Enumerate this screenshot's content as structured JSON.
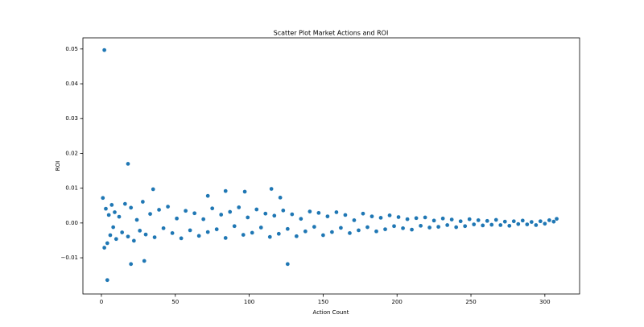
{
  "chart_data": {
    "type": "scatter",
    "title": "Scatter Plot Market Actions and ROI",
    "xlabel": "Action Count",
    "ylabel": "ROI",
    "color": "#1f77b4",
    "grid": false,
    "xlim": [
      -12.5,
      323.5
    ],
    "ylim": [
      -0.0204,
      0.0532
    ],
    "xticks": [
      0,
      50,
      100,
      150,
      200,
      250,
      300
    ],
    "yticks": [
      {
        "value": -0.01,
        "label": "−0.01"
      },
      {
        "value": 0,
        "label": "0.00"
      },
      0.01,
      0.02,
      0.03,
      0.04,
      0.05
    ],
    "x": [
      1,
      2,
      3,
      4,
      5,
      6,
      7,
      8,
      9,
      10,
      12,
      14,
      16,
      18,
      20,
      22,
      24,
      26,
      28,
      30,
      33,
      36,
      39,
      42,
      45,
      48,
      51,
      54,
      57,
      60,
      63,
      66,
      69,
      72,
      75,
      78,
      81,
      84,
      87,
      90,
      93,
      96,
      99,
      102,
      105,
      108,
      111,
      114,
      117,
      120,
      123,
      126,
      129,
      132,
      135,
      138,
      141,
      144,
      147,
      150,
      153,
      156,
      159,
      162,
      165,
      168,
      171,
      174,
      177,
      180,
      183,
      186,
      189,
      192,
      195,
      198,
      201,
      204,
      207,
      210,
      213,
      216,
      219,
      222,
      225,
      228,
      231,
      234,
      237,
      240,
      243,
      246,
      249,
      252,
      255,
      258,
      261,
      264,
      267,
      270,
      273,
      276,
      279,
      282,
      285,
      288,
      291,
      294,
      297,
      300,
      303,
      306,
      308,
      2,
      18,
      4,
      20,
      29,
      126,
      115,
      35,
      97,
      84,
      72,
      121
    ],
    "y": [
      0.0072,
      -0.0071,
      0.0041,
      -0.0058,
      0.0023,
      -0.0035,
      0.0052,
      -0.0012,
      0.0031,
      -0.0046,
      0.0018,
      -0.0027,
      0.0055,
      -0.0039,
      0.0044,
      -0.0051,
      0.0009,
      -0.0022,
      0.0061,
      -0.0033,
      0.0026,
      -0.0041,
      0.0038,
      -0.0015,
      0.0047,
      -0.0029,
      0.0013,
      -0.0044,
      0.0035,
      -0.0021,
      0.0028,
      -0.0037,
      0.0011,
      -0.0026,
      0.0042,
      -0.0018,
      0.0024,
      -0.0043,
      0.0032,
      -0.0009,
      0.0045,
      -0.0034,
      0.0016,
      -0.0028,
      0.0039,
      -0.0013,
      0.0027,
      -0.004,
      0.0021,
      -0.0031,
      0.0036,
      -0.0017,
      0.0025,
      -0.0038,
      0.0012,
      -0.0024,
      0.0033,
      -0.0011,
      0.0029,
      -0.0035,
      0.0019,
      -0.0026,
      0.0031,
      -0.0014,
      0.0023,
      -0.0029,
      0.0008,
      -0.0021,
      0.0027,
      -0.0012,
      0.0019,
      -0.0024,
      0.0015,
      -0.0018,
      0.0022,
      -0.0009,
      0.0017,
      -0.0015,
      0.0011,
      -0.0019,
      0.0014,
      -0.0008,
      0.0016,
      -0.0013,
      0.0007,
      -0.0011,
      0.0013,
      -0.0006,
      0.001,
      -0.0012,
      0.0005,
      -0.0009,
      0.0011,
      -0.0004,
      0.0008,
      -0.0007,
      0.0006,
      -0.0005,
      0.0009,
      -0.0006,
      0.0004,
      -0.0008,
      0.0005,
      -0.0003,
      0.0007,
      -0.0004,
      0.0003,
      -0.0006,
      0.0005,
      -0.0002,
      0.0008,
      0.0004,
      0.0012,
      0.0497,
      0.017,
      -0.0164,
      -0.0118,
      -0.0109,
      -0.0118,
      0.0098,
      0.0097,
      0.009,
      0.0092,
      0.0078,
      0.0073
    ]
  }
}
